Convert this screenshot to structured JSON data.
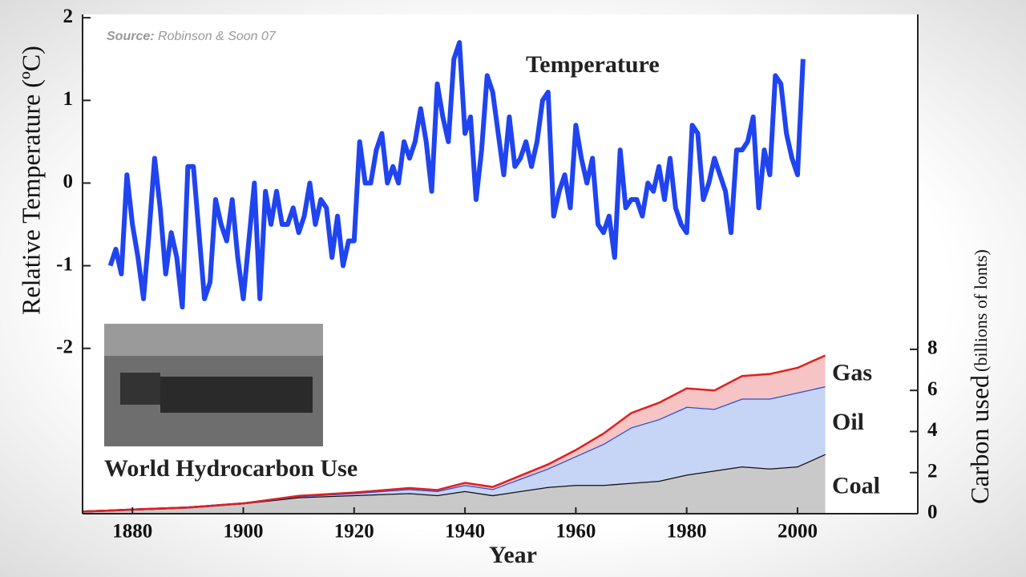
{
  "chart_data": [
    {
      "type": "line",
      "xlabel": "Year",
      "ylabel": "Relative Temperature (ºC)",
      "annotation": {
        "bold": "Source:",
        "text": "Robinson & Soon 07"
      },
      "xlim": [
        1871,
        2021.7
      ],
      "xticks": [
        1880,
        1900,
        1920,
        1940,
        1960,
        1980,
        2000
      ],
      "ylim": [
        -4,
        2.04
      ],
      "yticks": [
        2,
        1,
        0,
        -1,
        -2
      ],
      "x": [
        1876,
        1877,
        1878,
        1879,
        1880,
        1881,
        1882,
        1883,
        1884,
        1885,
        1886,
        1887,
        1888,
        1889,
        1890,
        1891,
        1892,
        1893,
        1894,
        1895,
        1896,
        1897,
        1898,
        1899,
        1900,
        1901,
        1902,
        1903,
        1904,
        1905,
        1906,
        1907,
        1908,
        1909,
        1910,
        1911,
        1912,
        1913,
        1914,
        1915,
        1916,
        1917,
        1918,
        1919,
        1920,
        1921,
        1922,
        1923,
        1924,
        1925,
        1926,
        1927,
        1928,
        1929,
        1930,
        1931,
        1932,
        1933,
        1934,
        1935,
        1936,
        1937,
        1938,
        1939,
        1940,
        1941,
        1942,
        1943,
        1944,
        1945,
        1946,
        1947,
        1948,
        1949,
        1950,
        1951,
        1952,
        1953,
        1954,
        1955,
        1956,
        1957,
        1958,
        1959,
        1960,
        1961,
        1962,
        1963,
        1964,
        1965,
        1966,
        1967,
        1968,
        1969,
        1970,
        1971,
        1972,
        1973,
        1974,
        1975,
        1976,
        1977,
        1978,
        1979,
        1980,
        1981,
        1982,
        1983,
        1984,
        1985,
        1986,
        1987,
        1988,
        1989,
        1990,
        1991,
        1992,
        1993,
        1994,
        1995,
        1996,
        1997,
        1998,
        1999,
        2000,
        2001
      ],
      "series": [
        {
          "name": "Temperature",
          "color": "#1f44f0",
          "values": [
            -1.0,
            -0.8,
            -1.1,
            0.1,
            -0.5,
            -0.9,
            -1.4,
            -0.6,
            0.3,
            -0.3,
            -1.1,
            -0.6,
            -0.9,
            -1.5,
            0.2,
            0.2,
            -0.6,
            -1.4,
            -1.2,
            -0.2,
            -0.5,
            -0.7,
            -0.2,
            -0.9,
            -1.4,
            -0.7,
            0.0,
            -1.4,
            -0.1,
            -0.5,
            -0.1,
            -0.5,
            -0.5,
            -0.3,
            -0.6,
            -0.4,
            0.0,
            -0.5,
            -0.2,
            -0.3,
            -0.9,
            -0.4,
            -1.0,
            -0.7,
            -0.7,
            0.5,
            0.0,
            0.0,
            0.4,
            0.6,
            0.0,
            0.2,
            0.0,
            0.5,
            0.3,
            0.5,
            0.9,
            0.5,
            -0.1,
            1.2,
            0.8,
            0.5,
            1.5,
            1.7,
            0.6,
            0.8,
            -0.2,
            0.4,
            1.3,
            1.1,
            0.6,
            0.1,
            0.8,
            0.2,
            0.3,
            0.5,
            0.2,
            0.5,
            1.0,
            1.1,
            -0.4,
            -0.1,
            0.1,
            -0.3,
            0.7,
            0.3,
            0.0,
            0.3,
            -0.5,
            -0.6,
            -0.4,
            -0.9,
            0.4,
            -0.3,
            -0.2,
            -0.2,
            -0.4,
            0.0,
            -0.1,
            0.2,
            -0.2,
            0.3,
            -0.3,
            -0.5,
            -0.6,
            0.7,
            0.6,
            -0.2,
            0.0,
            0.3,
            0.1,
            -0.1,
            -0.6,
            0.4,
            0.4,
            0.5,
            0.8,
            -0.3,
            0.4,
            0.1,
            1.3,
            1.2,
            0.6,
            0.3,
            0.1,
            1.5
          ]
        }
      ]
    },
    {
      "type": "stacked_area",
      "title": "World Hydrocarbon Use",
      "y2label": {
        "main": "Carbon used",
        "unit": "(billions of lonts)"
      },
      "y2lim": [
        0,
        24.3
      ],
      "y2ticks": [
        0,
        2,
        4,
        6,
        8
      ],
      "x": [
        1871,
        1880,
        1890,
        1900,
        1910,
        1920,
        1930,
        1935,
        1940,
        1945,
        1950,
        1955,
        1960,
        1965,
        1970,
        1975,
        1980,
        1985,
        1990,
        1995,
        2000,
        2005
      ],
      "series": [
        {
          "name": "Coal",
          "color": "#c9c9c9",
          "line_color": "#111111",
          "values": [
            0.1,
            0.2,
            0.3,
            0.5,
            0.8,
            0.9,
            1.0,
            0.9,
            1.1,
            0.9,
            1.1,
            1.3,
            1.4,
            1.4,
            1.5,
            1.6,
            1.9,
            2.1,
            2.3,
            2.2,
            2.3,
            2.9
          ]
        },
        {
          "name": "Oil",
          "color": "#c6d4f6",
          "line_color": "#2a4fd0",
          "values": [
            0,
            0,
            0,
            0,
            0.05,
            0.1,
            0.2,
            0.2,
            0.3,
            0.3,
            0.6,
            0.9,
            1.4,
            2.0,
            2.7,
            3.0,
            3.3,
            3.0,
            3.3,
            3.4,
            3.6,
            3.3
          ]
        },
        {
          "name": "Gas",
          "color": "#f6c4c4",
          "line_color": "#e02020",
          "values": [
            0,
            0,
            0,
            0,
            0.02,
            0.03,
            0.05,
            0.05,
            0.1,
            0.1,
            0.15,
            0.2,
            0.3,
            0.5,
            0.7,
            0.8,
            0.9,
            0.9,
            1.1,
            1.2,
            1.2,
            1.5
          ]
        }
      ]
    }
  ]
}
